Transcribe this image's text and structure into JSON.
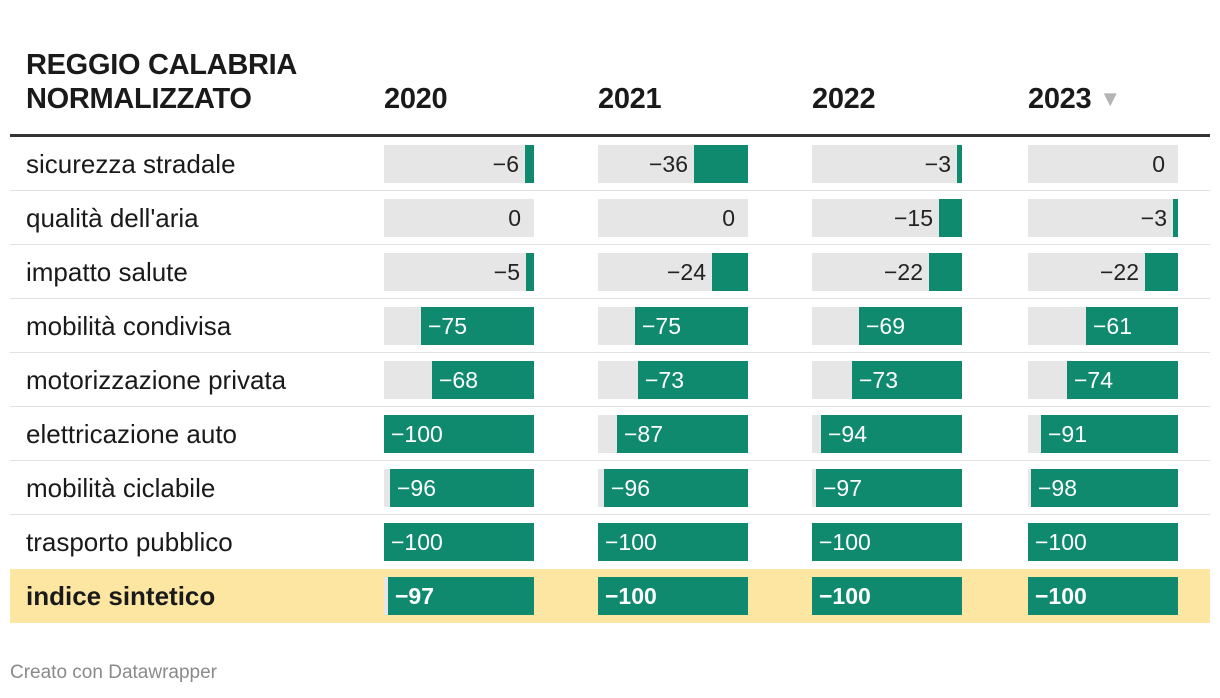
{
  "chart_data": {
    "type": "table",
    "title_lines": [
      "REGGIO CALABRIA",
      "NORMALIZZATO"
    ],
    "columns": [
      "2020",
      "2021",
      "2022",
      "2023"
    ],
    "sort_icon": "sort-down-triangle-icon",
    "sort_glyph": "▼",
    "value_range": [
      -100,
      0
    ],
    "bar_color": "#0f8a6f",
    "track_color": "#e6e6e6",
    "highlight_color": "#fde6a1",
    "rows": [
      {
        "label": "sicurezza stradale",
        "values": [
          -6,
          -36,
          -3,
          0
        ],
        "display": [
          "−6",
          "−36",
          "−3",
          "0"
        ]
      },
      {
        "label": "qualità dell'aria",
        "values": [
          0,
          0,
          -15,
          -3
        ],
        "display": [
          "0",
          "0",
          "−15",
          "−3"
        ]
      },
      {
        "label": "impatto salute",
        "values": [
          -5,
          -24,
          -22,
          -22
        ],
        "display": [
          "−5",
          "−24",
          "−22",
          "−22"
        ]
      },
      {
        "label": "mobilità condivisa",
        "values": [
          -75,
          -75,
          -69,
          -61
        ],
        "display": [
          "−75",
          "−75",
          "−69",
          "−61"
        ]
      },
      {
        "label": "motorizzazione privata",
        "values": [
          -68,
          -73,
          -73,
          -74
        ],
        "display": [
          "−68",
          "−73",
          "−73",
          "−74"
        ]
      },
      {
        "label": "elettricazione auto",
        "values": [
          -100,
          -87,
          -94,
          -91
        ],
        "display": [
          "−100",
          "−87",
          "−94",
          "−91"
        ]
      },
      {
        "label": "mobilità ciclabile",
        "values": [
          -96,
          -96,
          -97,
          -98
        ],
        "display": [
          "−96",
          "−96",
          "−97",
          "−98"
        ]
      },
      {
        "label": "trasporto pubblico",
        "values": [
          -100,
          -100,
          -100,
          -100
        ],
        "display": [
          "−100",
          "−100",
          "−100",
          "−100"
        ]
      },
      {
        "label": "indice sintetico",
        "values": [
          -97,
          -100,
          -100,
          -100
        ],
        "display": [
          "−97",
          "−100",
          "−100",
          "−100"
        ],
        "highlight": true
      }
    ]
  },
  "footer": "Creato con Datawrapper"
}
